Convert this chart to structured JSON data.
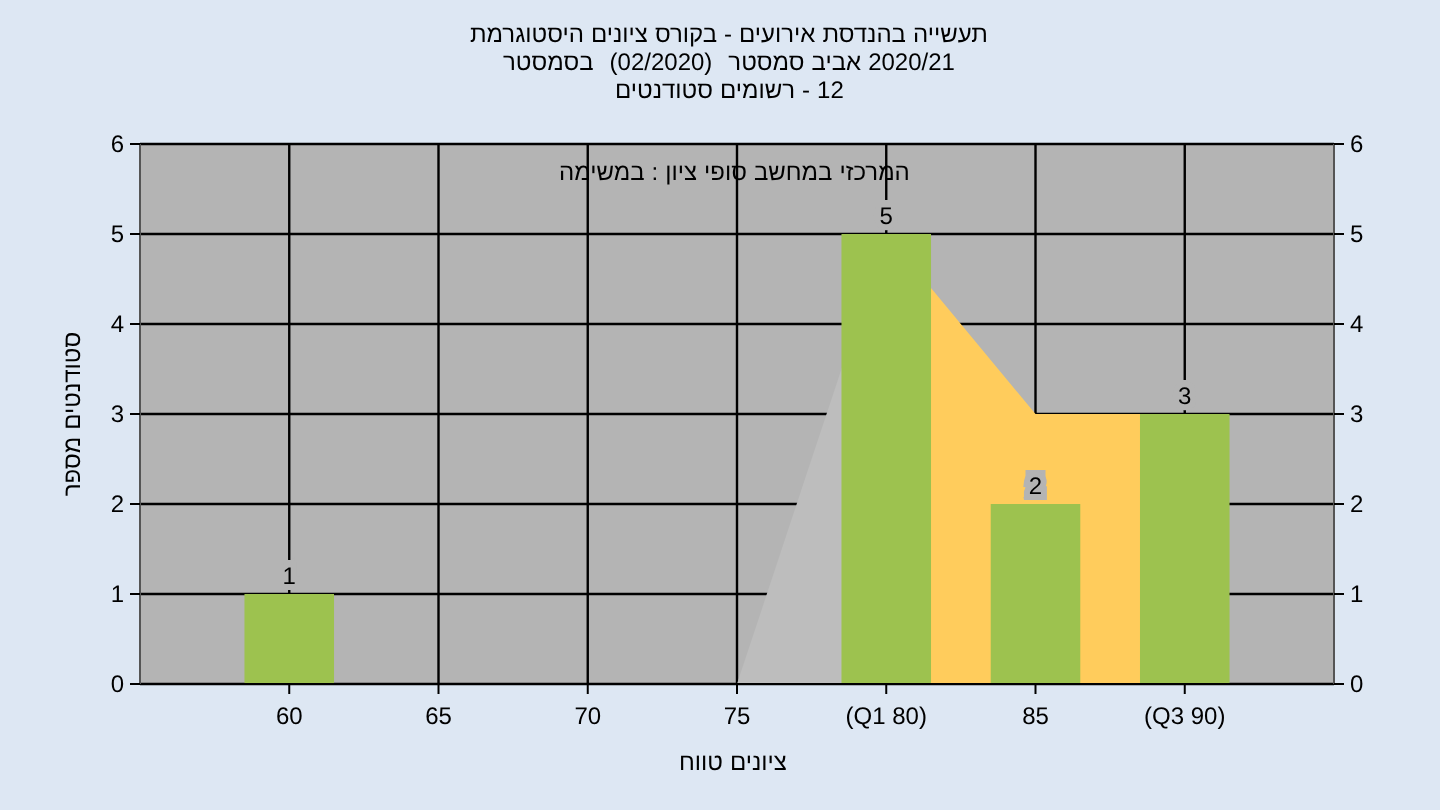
{
  "chart_data": {
    "type": "bar",
    "title": "היסטוגרמת ציונים בקורס - אירועים בהנדסת תעשייה",
    "subtitle": "בסמסטר  (02/2020)  סמסטר אביב 2020/21",
    "xlabel": "טווח ציונים",
    "ylabel": "מספר סטודנטים",
    "annotations": [
      "סטודנטים רשומים - 12",
      "במשימה : ציון סופי במחשב המרכזי"
    ],
    "categories": [
      "60",
      "65",
      "70",
      "75",
      "(Q1 80)",
      "85",
      "(Q3 90)"
    ],
    "series": [
      {
        "type": "area",
        "color": "#bdbdbd",
        "values": [
          null,
          null,
          null,
          0,
          5,
          null,
          null
        ]
      },
      {
        "type": "area",
        "color": "#ffcc5c",
        "values": [
          null,
          null,
          null,
          null,
          5,
          3,
          3
        ]
      },
      {
        "type": "bar",
        "color": "#9dc24f",
        "values": [
          1,
          0,
          0,
          0,
          5,
          2,
          3
        ],
        "value_labels": [
          "1",
          null,
          null,
          null,
          "5",
          "2",
          "3"
        ]
      }
    ],
    "ylim": [
      0,
      6
    ],
    "yticks": [
      0,
      1,
      2,
      3,
      4,
      5,
      6
    ],
    "y2lim": [
      0,
      6
    ],
    "y2ticks": [
      0,
      1,
      2,
      3,
      4,
      5,
      6
    ],
    "grid": true
  }
}
